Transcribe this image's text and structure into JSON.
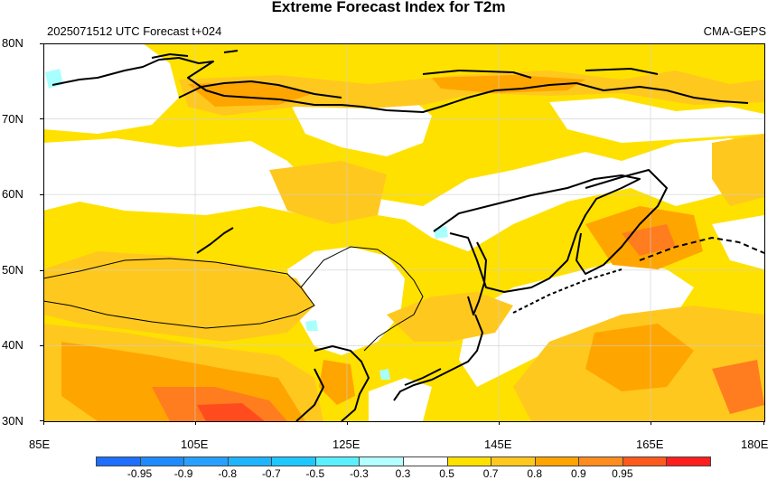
{
  "title": "Extreme Forecast Index for T2m",
  "subtitle_left": "2025071512 UTC Forecast t+024",
  "subtitle_right": "CMA-GEPS",
  "map": {
    "lon_range": [
      85,
      180
    ],
    "lat_range": [
      30,
      80
    ],
    "lat_labels": [
      "30N",
      "40N",
      "50N",
      "60N",
      "70N",
      "80N"
    ],
    "lon_labels": [
      "85E",
      "105E",
      "125E",
      "145E",
      "165E",
      "180E"
    ],
    "colors": {
      "white": "#ffffff",
      "yellow": "#ffe100",
      "light_orange": "#ffc81e",
      "orange": "#ffa500",
      "dark_orange": "#ff7d1e",
      "red_orange": "#ff4b1e",
      "red": "#ff1e1e",
      "cyan": "#a8ffff",
      "coast": "#000000"
    }
  },
  "colorbar": {
    "labels": [
      "-0.95",
      "-0.9",
      "-0.8",
      "-0.7",
      "-0.5",
      "-0.3",
      "0.3",
      "0.5",
      "0.7",
      "0.8",
      "0.9",
      "0.95"
    ],
    "colors": [
      "#1e6eff",
      "#1e8cff",
      "#28a0ff",
      "#1eb4ff",
      "#1ec8ff",
      "#5af0ff",
      "#b4ffff",
      "#ffffff",
      "#ffe100",
      "#ffc81e",
      "#ffa500",
      "#ff8c1e",
      "#ff5a1e",
      "#ff1e1e"
    ]
  }
}
